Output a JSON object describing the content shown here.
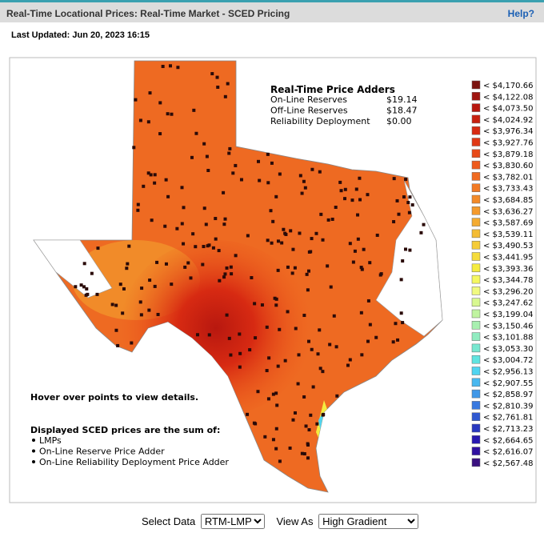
{
  "header": {
    "title": "Real-Time Locational Prices: Real-Time Market - SCED Pricing",
    "help": "Help?"
  },
  "last_updated": "Last Updated: Jun 20, 2023 16:15",
  "price_adders": {
    "title": "Real-Time Price Adders",
    "rows": [
      [
        "On-Line Reserves",
        "$19.14"
      ],
      [
        "Off-Line Reserves",
        "$18.47"
      ],
      [
        "Reliability Deployment",
        "$0.00"
      ]
    ]
  },
  "hover_note": "Hover over points to view details.",
  "displayed": {
    "title": "Displayed SCED prices are the sum of:",
    "items": [
      "LMPs",
      "On-Line Reserve Price Adder",
      "On-Line Reliability Deployment Price Adder"
    ]
  },
  "legend": [
    {
      "label": "< $4,170.66",
      "color": "#7b1410"
    },
    {
      "label": "< $4,122.08",
      "color": "#a01510"
    },
    {
      "label": "< $4,073.50",
      "color": "#b8180f"
    },
    {
      "label": "< $4,024.92",
      "color": "#c8200f"
    },
    {
      "label": "< $3,976.34",
      "color": "#d72a12"
    },
    {
      "label": "< $3,927.76",
      "color": "#e03815"
    },
    {
      "label": "< $3,879.18",
      "color": "#e84a18"
    },
    {
      "label": "< $3,830.60",
      "color": "#ee5a1c"
    },
    {
      "label": "< $3,782.01",
      "color": "#f06a20"
    },
    {
      "label": "< $3,733.43",
      "color": "#f27a24"
    },
    {
      "label": "< $3,684.85",
      "color": "#f38a28"
    },
    {
      "label": "< $3,636.27",
      "color": "#f49a2c"
    },
    {
      "label": "< $3,587.69",
      "color": "#f4ab30"
    },
    {
      "label": "< $3,539.11",
      "color": "#f4bc34"
    },
    {
      "label": "< $3,490.53",
      "color": "#f5cc38"
    },
    {
      "label": "< $3,441.95",
      "color": "#f5dc3c"
    },
    {
      "label": "< $3,393.36",
      "color": "#f5ec40"
    },
    {
      "label": "< $3,344.78",
      "color": "#f5f860"
    },
    {
      "label": "< $3,296.20",
      "color": "#f0fa80"
    },
    {
      "label": "< $3,247.62",
      "color": "#d8f890"
    },
    {
      "label": "< $3,199.04",
      "color": "#c0f4a0"
    },
    {
      "label": "< $3,150.46",
      "color": "#a8f0b0"
    },
    {
      "label": "< $3,101.88",
      "color": "#90ecc0"
    },
    {
      "label": "< $3,053.30",
      "color": "#78e8d0"
    },
    {
      "label": "< $3,004.72",
      "color": "#60e4e0"
    },
    {
      "label": "< $2,956.13",
      "color": "#50d4f0"
    },
    {
      "label": "< $2,907.55",
      "color": "#48b8f0"
    },
    {
      "label": "< $2,858.97",
      "color": "#4098e8"
    },
    {
      "label": "< $2,810.39",
      "color": "#3878e0"
    },
    {
      "label": "< $2,761.81",
      "color": "#3058d0"
    },
    {
      "label": "< $2,713.23",
      "color": "#2838c0"
    },
    {
      "label": "< $2,664.65",
      "color": "#2818b0"
    },
    {
      "label": "< $2,616.07",
      "color": "#3010a0"
    },
    {
      "label": "< $2,567.48",
      "color": "#3a1080"
    }
  ],
  "controls": {
    "select_data": {
      "label": "Select Data",
      "value": "RTM-LMP"
    },
    "view_as": {
      "label": "View As",
      "value": "High Gradient"
    }
  }
}
